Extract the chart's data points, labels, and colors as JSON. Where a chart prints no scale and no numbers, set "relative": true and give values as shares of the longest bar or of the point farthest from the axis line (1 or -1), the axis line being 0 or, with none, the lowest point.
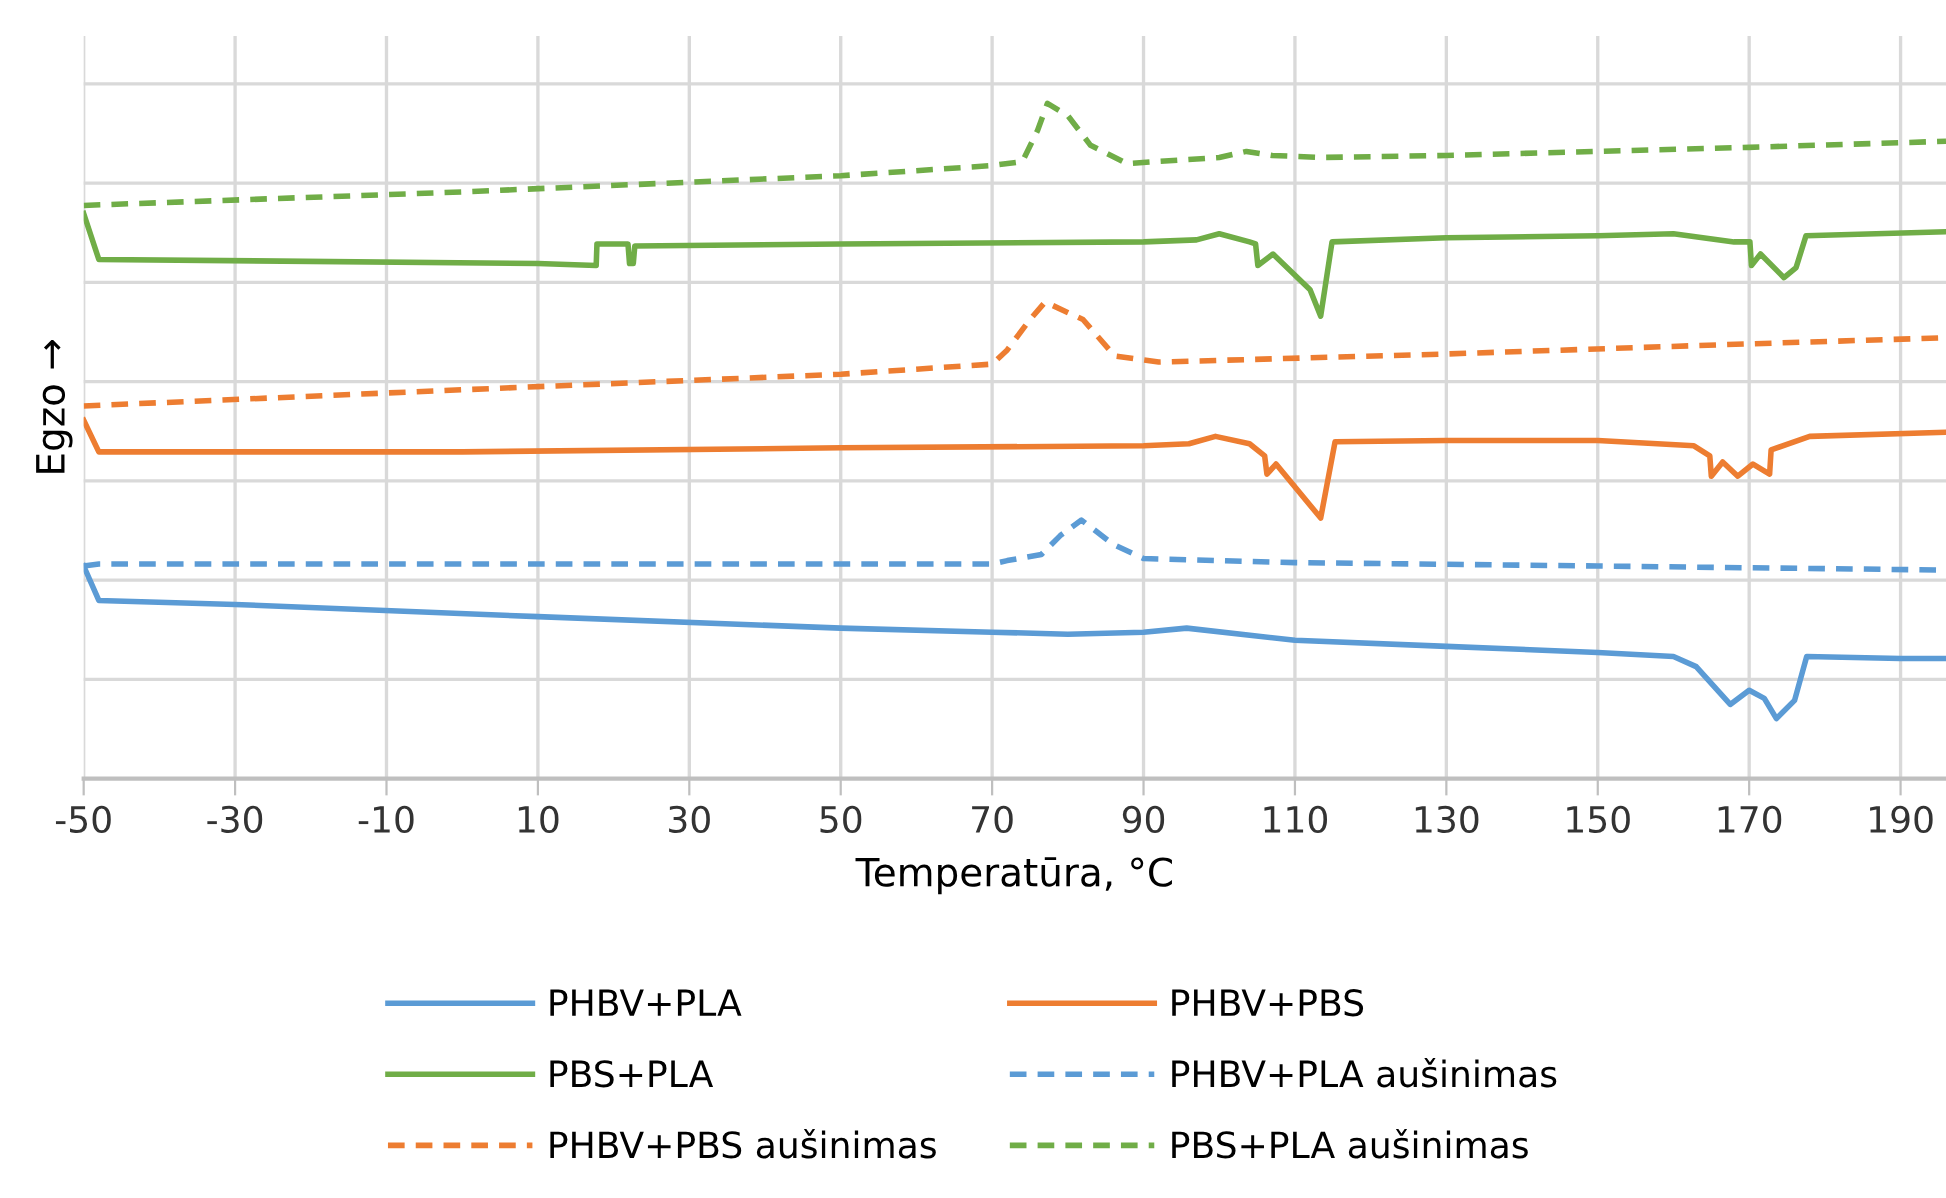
{
  "chart_data": {
    "type": "line",
    "relative": true,
    "xlabel": "Temperatūra, °C",
    "ylabel": "Egzo →",
    "xlim": [
      -50,
      196
    ],
    "xticks": [
      -50,
      -30,
      -10,
      10,
      30,
      50,
      70,
      90,
      110,
      130,
      150,
      170,
      190
    ],
    "grid": true,
    "legend": "bottom",
    "tick_labels": "x",
    "series": [
      {
        "name": "PHBV+PLA",
        "color": "#5b9bd5",
        "line_style": "solid",
        "x": [
          -50,
          -48,
          -30,
          10,
          50,
          70,
          80,
          90,
          95.7,
          110,
          130,
          150,
          160,
          163,
          167.5,
          170,
          172,
          173.6,
          176,
          177.6,
          190,
          196
        ],
        "values": [
          0.315,
          0.264,
          0.258,
          0.24,
          0.223,
          0.217,
          0.214,
          0.217,
          0.223,
          0.205,
          0.196,
          0.187,
          0.181,
          0.166,
          0.11,
          0.131,
          0.119,
          0.089,
          0.116,
          0.181,
          0.178,
          0.178
        ]
      },
      {
        "name": "PHBV+PBS",
        "color": "#ed7d31",
        "line_style": "solid",
        "x": [
          -50,
          -48,
          0,
          50,
          90,
          96,
          99.5,
          104,
          106,
          106.3,
          107.5,
          113.4,
          115.3,
          130,
          150,
          162.7,
          164.8,
          165,
          166.5,
          168.5,
          170.5,
          172.7,
          172.9,
          178,
          196
        ],
        "values": [
          0.531,
          0.484,
          0.484,
          0.49,
          0.493,
          0.496,
          0.507,
          0.496,
          0.478,
          0.451,
          0.466,
          0.386,
          0.499,
          0.501,
          0.501,
          0.493,
          0.478,
          0.448,
          0.469,
          0.448,
          0.466,
          0.451,
          0.487,
          0.507,
          0.513
        ]
      },
      {
        "name": "PBS+PLA",
        "color": "#70ad47",
        "line_style": "solid",
        "x": [
          -50,
          -48,
          10,
          17.7,
          17.8,
          21.9,
          22.1,
          22.6,
          22.8,
          50,
          90,
          97,
          100,
          104,
          104.8,
          105.1,
          107.1,
          112,
          113.4,
          114.9,
          130,
          150,
          160,
          168,
          170.1,
          170.3,
          171.5,
          174.6,
          176.2,
          177.5,
          196
        ],
        "values": [
          0.837,
          0.769,
          0.763,
          0.76,
          0.792,
          0.792,
          0.763,
          0.763,
          0.789,
          0.792,
          0.795,
          0.798,
          0.807,
          0.795,
          0.792,
          0.76,
          0.777,
          0.724,
          0.685,
          0.795,
          0.801,
          0.804,
          0.807,
          0.795,
          0.795,
          0.76,
          0.777,
          0.742,
          0.757,
          0.804,
          0.81
        ]
      },
      {
        "name": "PHBV+PLA aušinimas",
        "color": "#5b9bd5",
        "line_style": "dashed",
        "x": [
          -50,
          -48,
          0,
          70,
          72,
          76.5,
          79,
          81.8,
          86,
          90,
          110,
          150,
          196
        ],
        "values": [
          0.315,
          0.318,
          0.318,
          0.318,
          0.323,
          0.332,
          0.36,
          0.383,
          0.347,
          0.326,
          0.32,
          0.315,
          0.309
        ]
      },
      {
        "name": "PHBV+PBS aušinimas",
        "color": "#ed7d31",
        "line_style": "dashed",
        "x": [
          -50,
          0,
          50,
          70,
          72,
          75,
          77,
          82,
          86.2,
          92,
          130,
          170,
          196
        ],
        "values": [
          0.552,
          0.576,
          0.599,
          0.614,
          0.635,
          0.68,
          0.706,
          0.68,
          0.626,
          0.617,
          0.629,
          0.644,
          0.653
        ]
      },
      {
        "name": "PBS+PLA aušinimas",
        "color": "#70ad47",
        "line_style": "dashed",
        "x": [
          -50,
          0,
          50,
          70,
          74,
          76,
          77.3,
          80,
          83,
          87.8,
          100,
          103.6,
          107,
          113.4,
          130,
          170,
          196
        ],
        "values": [
          0.849,
          0.869,
          0.893,
          0.908,
          0.914,
          0.96,
          1.0,
          0.982,
          0.938,
          0.911,
          0.92,
          0.929,
          0.923,
          0.92,
          0.923,
          0.935,
          0.944
        ]
      }
    ]
  }
}
